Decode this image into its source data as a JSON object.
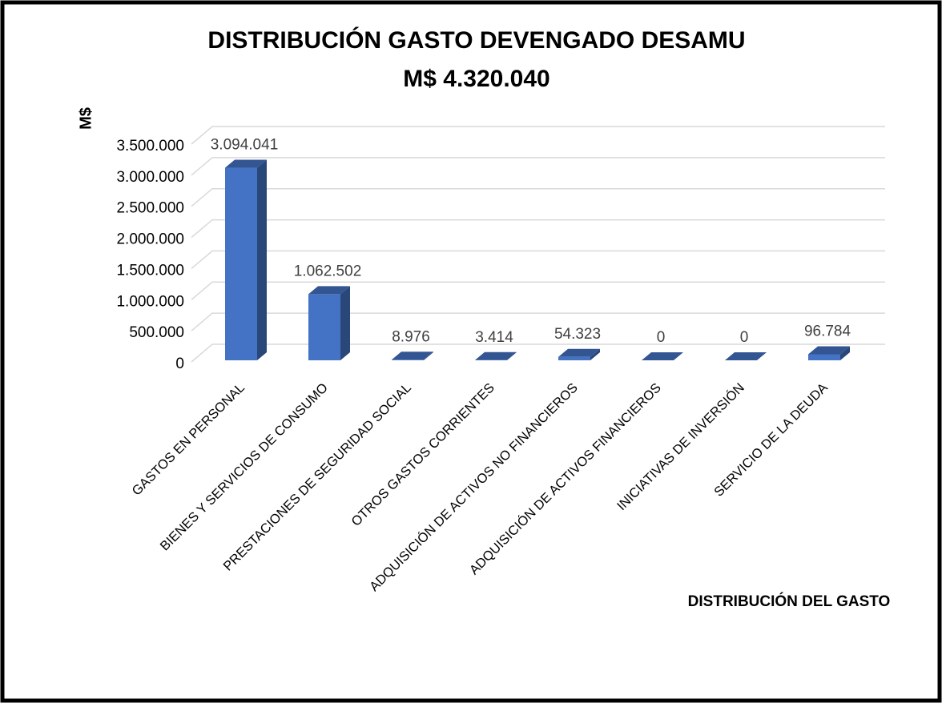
{
  "chart_data": {
    "type": "bar3d",
    "title": "DISTRIBUCIÓN GASTO DEVENGADO DESAMU",
    "subtitle": "M$ 4.320.040",
    "y_label": "M$",
    "x_label": "DISTRIBUCIÓN DEL GASTO",
    "categories": [
      "GASTOS EN PERSONAL",
      "BIENES Y SERVICIOS DE CONSUMO",
      "PRESTACIONES DE SEGURIDAD SOCIAL",
      "OTROS GASTOS CORRIENTES",
      "ADQUISICIÓN DE ACTIVOS NO FINANCIEROS",
      "ADQUISICIÓN DE ACTIVOS FINANCIEROS",
      "INICIATIVAS DE INVERSIÓN",
      "SERVICIO DE LA DEUDA"
    ],
    "values": [
      3094041,
      1062502,
      8976,
      3414,
      54323,
      0,
      0,
      96784
    ],
    "value_labels": [
      "3.094.041",
      "1.062.502",
      "8.976",
      "3.414",
      "54.323",
      "0",
      "0",
      "96.784"
    ],
    "color": "#4472c4",
    "ylim": [
      0,
      3500000
    ],
    "yticks": [
      0,
      {
        "value": 500000,
        "label": "500.000"
      },
      {
        "value": 1000000,
        "label": "1.000.000"
      },
      {
        "value": 1500000,
        "label": "1.500.000"
      },
      {
        "value": 2000000,
        "label": "2.000.000"
      },
      {
        "value": 2500000,
        "label": "2.500.000"
      },
      {
        "value": 3000000,
        "label": "3.000.000"
      },
      {
        "value": 3500000,
        "label": "3.500.000"
      }
    ],
    "grid": true
  }
}
